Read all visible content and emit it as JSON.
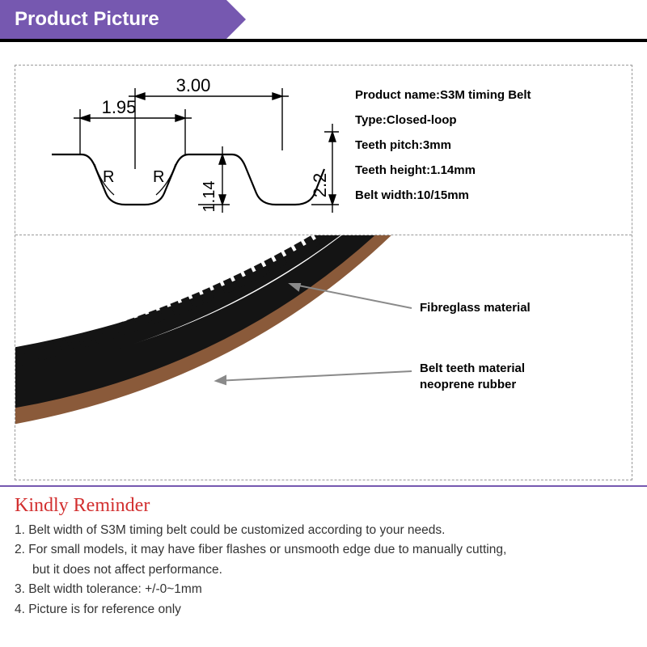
{
  "header": {
    "title": "Product Picture"
  },
  "colors": {
    "accent": "#7658b0",
    "black": "#000000",
    "red": "#d22f2f",
    "dash": "#999999",
    "belt_body": "#141414",
    "belt_layer": "#8a5a3a",
    "arrow": "#8a8a8a"
  },
  "diagram": {
    "dim_top": "3.00",
    "dim_width": "1.95",
    "dim_height_inner": "1.14",
    "dim_height_outer": "2.2",
    "radius_label": "R",
    "stroke": "#000000",
    "font_size": 17
  },
  "specs": [
    {
      "label": "Product name",
      "value": "S3M timing Belt"
    },
    {
      "label": "Type",
      "value": "Closed-loop"
    },
    {
      "label": "Teeth pitch",
      "value": "3mm"
    },
    {
      "label": "Teeth height",
      "value": "1.14mm"
    },
    {
      "label": "Belt width",
      "value": "10/15mm"
    }
  ],
  "callouts": {
    "fiber": "Fibreglass material",
    "teeth1": "Belt teeth material",
    "teeth2": "neoprene rubber"
  },
  "reminder": {
    "title": "Kindly Reminder",
    "items": [
      "1. Belt width of S3M timing belt could be customized according to your needs.",
      "2. For small models, it may have fiber flashes or unsmooth edge due to manually cutting,",
      "    but it does not affect performance.",
      "3. Belt width tolerance: +/-0~1mm",
      "4. Picture is for reference only"
    ]
  }
}
